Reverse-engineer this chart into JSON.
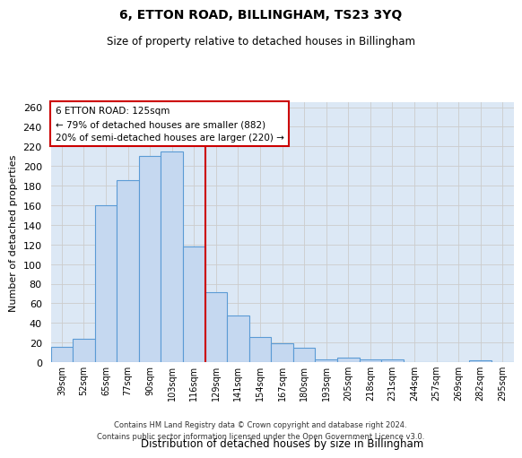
{
  "title": "6, ETTON ROAD, BILLINGHAM, TS23 3YQ",
  "subtitle": "Size of property relative to detached houses in Billingham",
  "xlabel": "Distribution of detached houses by size in Billingham",
  "ylabel": "Number of detached properties",
  "categories": [
    "39sqm",
    "52sqm",
    "65sqm",
    "77sqm",
    "90sqm",
    "103sqm",
    "116sqm",
    "129sqm",
    "141sqm",
    "154sqm",
    "167sqm",
    "180sqm",
    "193sqm",
    "205sqm",
    "218sqm",
    "231sqm",
    "244sqm",
    "257sqm",
    "269sqm",
    "282sqm",
    "295sqm"
  ],
  "values": [
    16,
    24,
    160,
    186,
    210,
    215,
    118,
    71,
    48,
    26,
    19,
    15,
    3,
    5,
    3,
    3,
    0,
    0,
    0,
    2,
    0
  ],
  "bar_color": "#c5d8f0",
  "bar_edge_color": "#5b9bd5",
  "vline_color": "#cc0000",
  "annotation_title": "6 ETTON ROAD: 125sqm",
  "annotation_line2": "← 79% of detached houses are smaller (882)",
  "annotation_line3": "20% of semi-detached houses are larger (220) →",
  "annotation_box_color": "#cc0000",
  "ylim": [
    0,
    265
  ],
  "yticks": [
    0,
    20,
    40,
    60,
    80,
    100,
    120,
    140,
    160,
    180,
    200,
    220,
    240,
    260
  ],
  "grid_color": "#cccccc",
  "bg_color": "#dce8f5",
  "footer_line1": "Contains HM Land Registry data © Crown copyright and database right 2024.",
  "footer_line2": "Contains public sector information licensed under the Open Government Licence v3.0."
}
